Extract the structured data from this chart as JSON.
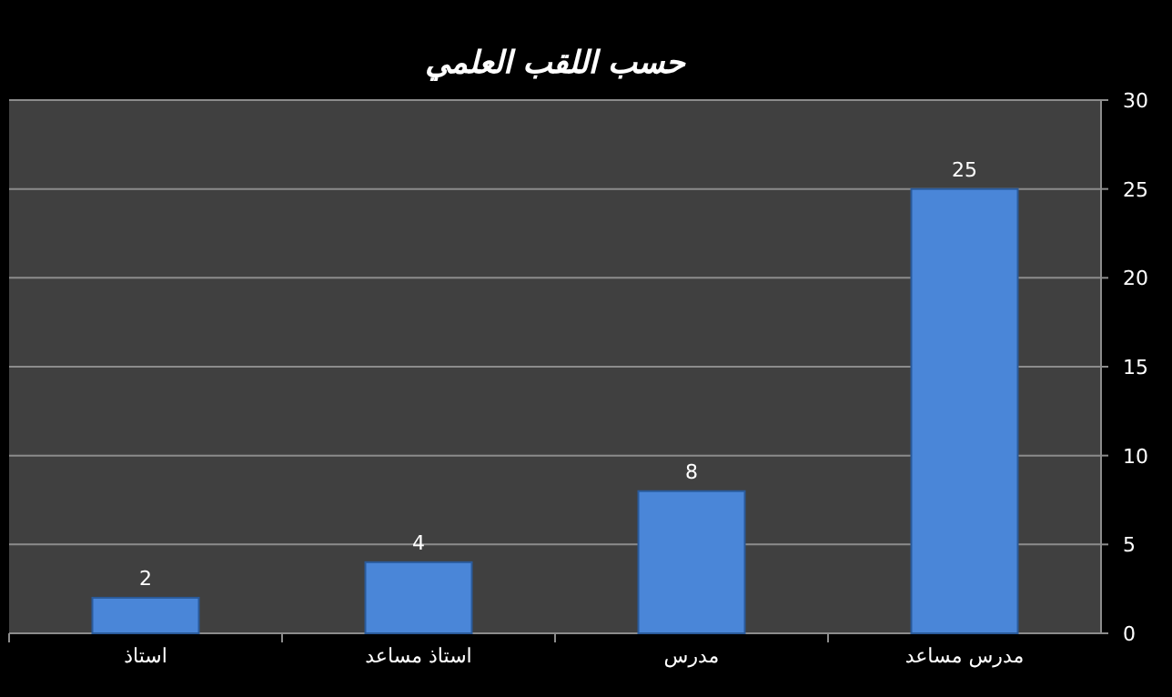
{
  "chart_data": {
    "type": "bar",
    "title": "حسب اللقب العلمي",
    "categories": [
      "استاذ",
      "استاذ مساعد",
      "مدرس",
      "مدرس مساعد"
    ],
    "values": [
      2,
      4,
      8,
      25
    ],
    "color": "#4a86d8",
    "ylim": [
      0,
      30
    ],
    "yticks": [
      0,
      5,
      10,
      15,
      20,
      25,
      30
    ],
    "grid": "y",
    "data_labels": true
  }
}
